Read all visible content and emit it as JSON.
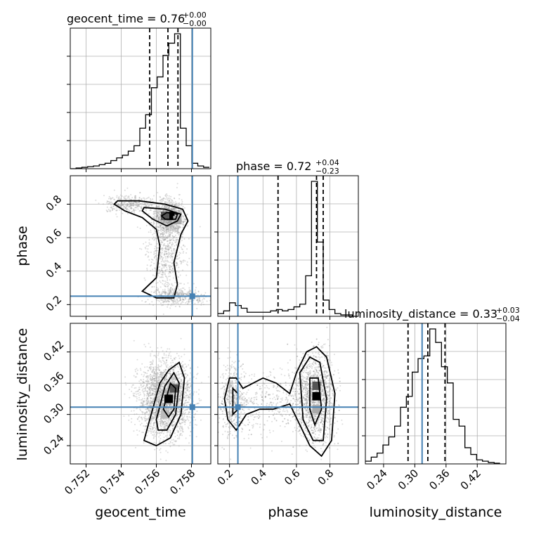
{
  "chart_data": {
    "type": "corner",
    "parameters": [
      "geocent_time",
      "phase",
      "luminosity_distance"
    ],
    "truths": {
      "geocent_time": 0.75805,
      "phase": 0.25,
      "luminosity_distance": 0.314
    },
    "colors": {
      "truth": "#4682b4",
      "line": "#000000",
      "grid": "#b0b0b0",
      "samples": "#9a9a9a"
    },
    "titles": [
      {
        "name": "geocent_time",
        "text": "geocent_time = 0.76",
        "plus": "+0.00",
        "minus": "−0.00"
      },
      {
        "name": "phase",
        "text": "phase = 0.72",
        "plus": "+0.04",
        "minus": "−0.23"
      },
      {
        "name": "luminosity_distance",
        "text": "luminosity_distance = 0.33",
        "plus": "+0.03",
        "minus": "−0.04"
      }
    ],
    "axes": {
      "geocent_time": {
        "range": [
          0.7511,
          0.7591
        ],
        "ticks": [
          0.752,
          0.754,
          0.756,
          0.758
        ],
        "tick_labels": [
          "0.752",
          "0.754",
          "0.756",
          "0.758"
        ],
        "label": "geocent_time"
      },
      "phase": {
        "range": [
          0.13,
          0.97
        ],
        "ticks": [
          0.2,
          0.4,
          0.6,
          0.8
        ],
        "tick_labels": [
          "0.2",
          "0.4",
          "0.6",
          "0.8"
        ],
        "label": "phase"
      },
      "luminosity_distance": {
        "range": [
          0.205,
          0.475
        ],
        "ticks": [
          0.24,
          0.3,
          0.36,
          0.42
        ],
        "tick_labels": [
          "0.24",
          "0.30",
          "0.36",
          "0.42"
        ],
        "label": "luminosity_distance"
      }
    },
    "histograms": [
      {
        "param": "geocent_time",
        "edges": [
          0.7511,
          0.75143,
          0.75176,
          0.75209,
          0.75242,
          0.75275,
          0.75308,
          0.75341,
          0.75374,
          0.75407,
          0.7544,
          0.75473,
          0.75506,
          0.75539,
          0.75572,
          0.75605,
          0.75638,
          0.75671,
          0.75704,
          0.75737,
          0.7577,
          0.75803,
          0.75836,
          0.75869,
          0.75902
        ],
        "counts": [
          0.0,
          0.005,
          0.01,
          0.015,
          0.02,
          0.03,
          0.04,
          0.06,
          0.08,
          0.1,
          0.13,
          0.17,
          0.3,
          0.4,
          0.6,
          0.68,
          0.84,
          0.93,
          1.0,
          0.3,
          0.17,
          0.04,
          0.02,
          0.01
        ],
        "quantiles": [
          0.75562,
          0.75666,
          0.75723
        ]
      },
      {
        "param": "phase",
        "edges": [
          0.13,
          0.165,
          0.2,
          0.235,
          0.27,
          0.305,
          0.34,
          0.375,
          0.41,
          0.445,
          0.48,
          0.515,
          0.55,
          0.585,
          0.62,
          0.655,
          0.69,
          0.725,
          0.76,
          0.795,
          0.83,
          0.865,
          0.9,
          0.935,
          0.97
        ],
        "counts": [
          0.02,
          0.04,
          0.1,
          0.08,
          0.06,
          0.03,
          0.03,
          0.03,
          0.03,
          0.04,
          0.05,
          0.04,
          0.05,
          0.07,
          0.09,
          0.3,
          1.0,
          0.55,
          0.12,
          0.05,
          0.02,
          0.01,
          0.01,
          0.0
        ],
        "quantiles": [
          0.49,
          0.72,
          0.76
        ]
      },
      {
        "param": "luminosity_distance",
        "edges": [
          0.205,
          0.21625,
          0.2275,
          0.23875,
          0.25,
          0.26125,
          0.2725,
          0.28375,
          0.295,
          0.30625,
          0.3175,
          0.32875,
          0.34,
          0.35125,
          0.3625,
          0.37375,
          0.385,
          0.39625,
          0.4075,
          0.41875,
          0.43,
          0.44125,
          0.4525,
          0.46375
        ],
        "counts": [
          0.02,
          0.05,
          0.08,
          0.14,
          0.2,
          0.28,
          0.42,
          0.5,
          0.68,
          0.78,
          0.8,
          1.0,
          0.9,
          0.72,
          0.6,
          0.33,
          0.28,
          0.12,
          0.07,
          0.03,
          0.02,
          0.01,
          0.005
        ],
        "quantiles": [
          0.287,
          0.325,
          0.358
        ]
      }
    ],
    "joint_2d": [
      {
        "x": "geocent_time",
        "y": "phase",
        "density_peak": [
          0.7572,
          0.73
        ]
      },
      {
        "x": "geocent_time",
        "y": "luminosity_distance",
        "density_peak": [
          0.7568,
          0.335
        ]
      },
      {
        "x": "phase",
        "y": "luminosity_distance",
        "density_peak": [
          0.72,
          0.335
        ]
      }
    ]
  }
}
